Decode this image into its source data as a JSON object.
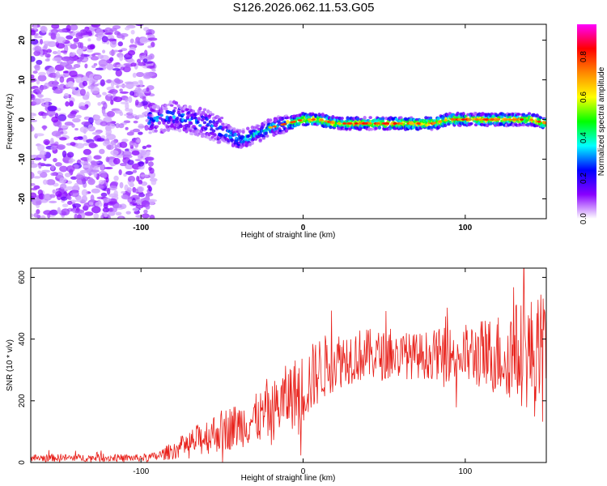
{
  "title": "S126.2026.062.11.53.G05",
  "chart_data": [
    {
      "type": "heatmap",
      "name": "spectrogram",
      "xlabel": "Height of straight line (km)",
      "ylabel": "Frequency (Hz)",
      "xlim": [
        -168,
        150
      ],
      "ylim": [
        -25,
        24
      ],
      "xticks": [
        -100,
        0,
        100
      ],
      "yticks": [
        -20,
        -10,
        0,
        10,
        20
      ],
      "xtick_labels": [
        "-100",
        "0",
        "100"
      ],
      "ytick_labels": [
        "-20",
        "-10",
        "0",
        "10",
        "20"
      ],
      "ridge": {
        "x": [
          -90,
          -80,
          -70,
          -60,
          -50,
          -40,
          -30,
          -20,
          -10,
          0,
          10,
          20,
          30,
          40,
          50,
          60,
          70,
          80,
          90,
          100,
          110,
          120,
          130,
          140,
          150
        ],
        "freq": [
          0,
          1,
          0,
          -1,
          -3,
          -5,
          -4,
          -2,
          -1,
          0,
          0,
          -1,
          -1,
          -1,
          -1,
          -1,
          -1,
          -1,
          0,
          0,
          0,
          0,
          0,
          0,
          -1
        ]
      },
      "colorbar": {
        "label": "Normalized spectral amplitude",
        "range": [
          0.0,
          0.96
        ],
        "ticks": [
          0.0,
          0.2,
          0.4,
          0.6,
          0.8
        ],
        "tick_labels": [
          "0.0",
          "0.2",
          "0.4",
          "0.6",
          "0.8"
        ],
        "colors": [
          "#ffffff",
          "#8800ff",
          "#0000ff",
          "#00ffff",
          "#00ff00",
          "#ffff00",
          "#ff8800",
          "#ff0000",
          "#ff00ff"
        ]
      }
    },
    {
      "type": "line",
      "name": "snr",
      "xlabel": "Height of straight line (km)",
      "ylabel": "SNR (10 * v/v)",
      "xlim": [
        -168,
        150
      ],
      "ylim": [
        0,
        630
      ],
      "xticks": [
        -100,
        0,
        100
      ],
      "yticks": [
        0,
        200,
        400,
        600
      ],
      "xtick_labels": [
        "-100",
        "0",
        "100"
      ],
      "ytick_labels": [
        "0",
        "200",
        "400",
        "600"
      ],
      "color": "#e8201a",
      "envelope": {
        "x": [
          -168,
          -100,
          -90,
          -80,
          -70,
          -60,
          -50,
          -40,
          -30,
          -20,
          -10,
          0,
          10,
          20,
          30,
          40,
          50,
          60,
          70,
          80,
          90,
          100,
          110,
          120,
          130,
          140,
          150
        ],
        "mean": [
          15,
          15,
          20,
          40,
          60,
          85,
          105,
          120,
          140,
          160,
          210,
          240,
          300,
          330,
          345,
          350,
          345,
          345,
          345,
          350,
          350,
          350,
          350,
          350,
          360,
          350,
          330
        ],
        "amp": [
          12,
          12,
          15,
          30,
          45,
          60,
          70,
          75,
          80,
          95,
          110,
          120,
          110,
          95,
          90,
          85,
          80,
          75,
          75,
          80,
          90,
          100,
          115,
          135,
          160,
          190,
          220
        ]
      }
    }
  ]
}
